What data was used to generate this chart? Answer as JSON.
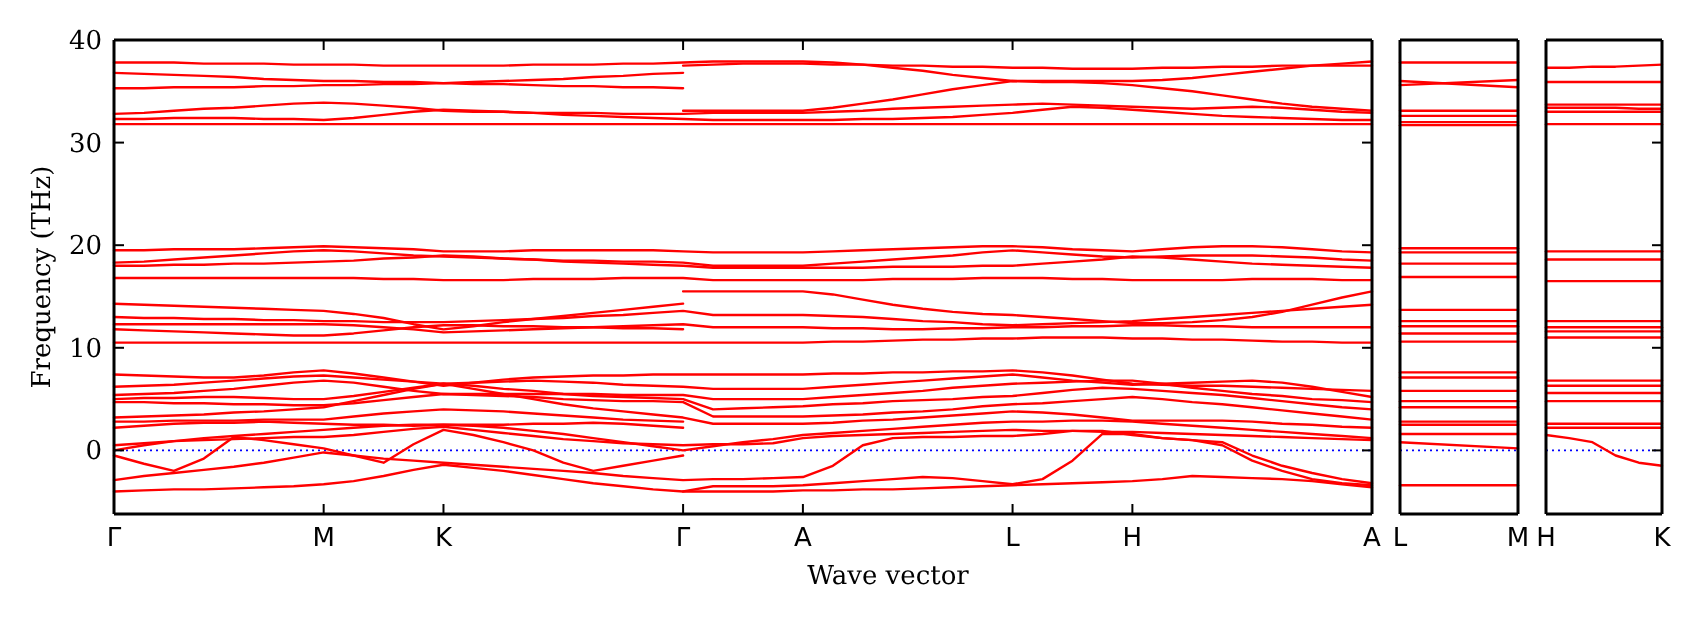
{
  "chart_data": [
    {
      "type": "line",
      "ylabel": "Frequency (THz)",
      "xlabel": "Wave vector",
      "ylim": [
        -6.2,
        40
      ],
      "categories": [
        "Γ",
        null,
        null,
        null,
        null,
        null,
        null,
        "M",
        null,
        null,
        null,
        "K",
        null,
        null,
        null,
        null,
        null,
        null,
        null,
        "Γ",
        null,
        null,
        null,
        "A",
        null,
        null,
        null,
        null,
        null,
        null,
        "L",
        null,
        null,
        null,
        "H",
        null,
        null,
        null,
        null,
        null,
        null,
        null,
        "A"
      ],
      "yticks": [
        0,
        10,
        20,
        30,
        40
      ],
      "ref_lines": [
        {
          "axis": "y",
          "value": 0,
          "color": "#0000ff",
          "line_style": "dotted"
        }
      ],
      "series": [
        {
          "color": "#ff0000",
          "values": [
            37.8,
            37.8,
            37.8,
            37.7,
            37.7,
            37.7,
            37.6,
            37.6,
            37.6,
            37.5,
            37.5,
            37.5,
            37.5,
            37.5,
            37.6,
            37.6,
            37.6,
            37.7,
            37.7,
            37.8,
            37.9,
            37.9,
            37.9,
            37.9,
            37.8,
            37.6,
            37.3,
            37.0,
            36.6,
            36.3,
            36.0,
            36.0,
            36.0,
            36.0,
            36.0,
            36.1,
            36.3,
            36.6,
            36.9,
            37.2,
            37.5,
            37.7,
            37.9
          ]
        },
        {
          "color": "#ff0000",
          "values": [
            null,
            null,
            null,
            null,
            null,
            null,
            null,
            null,
            null,
            null,
            null,
            null,
            null,
            null,
            null,
            null,
            null,
            null,
            null,
            37.5,
            37.6,
            37.7,
            37.7,
            37.7,
            37.6,
            37.6,
            37.5,
            37.5,
            37.4,
            37.4,
            37.3,
            37.3,
            37.2,
            37.2,
            37.2,
            37.3,
            37.3,
            37.4,
            37.4,
            37.5,
            37.5,
            37.5,
            37.5
          ]
        },
        {
          "color": "#ff0000",
          "values": [
            36.8,
            36.7,
            36.6,
            36.5,
            36.4,
            36.2,
            36.1,
            36.0,
            36.0,
            35.9,
            35.9,
            35.8,
            35.9,
            36.0,
            36.1,
            36.2,
            36.4,
            36.5,
            36.7,
            36.8,
            null,
            null,
            null,
            null,
            null,
            null,
            null,
            null,
            null,
            null,
            null,
            null,
            null,
            null,
            null,
            null,
            null,
            null,
            null,
            null,
            null,
            null,
            null
          ]
        },
        {
          "color": "#ff0000",
          "values": [
            35.3,
            35.3,
            35.4,
            35.4,
            35.4,
            35.5,
            35.5,
            35.6,
            35.6,
            35.7,
            35.7,
            35.8,
            35.7,
            35.7,
            35.6,
            35.5,
            35.5,
            35.4,
            35.4,
            35.3,
            null,
            null,
            null,
            null,
            null,
            null,
            null,
            null,
            null,
            null,
            null,
            null,
            null,
            null,
            null,
            null,
            null,
            null,
            null,
            null,
            null,
            null,
            null
          ]
        },
        {
          "color": "#ff0000",
          "values": [
            null,
            null,
            null,
            null,
            null,
            null,
            null,
            null,
            null,
            null,
            null,
            null,
            null,
            null,
            null,
            null,
            null,
            null,
            null,
            33.1,
            33.1,
            33.1,
            33.1,
            33.1,
            33.4,
            33.8,
            34.2,
            34.7,
            35.2,
            35.6,
            36.0,
            35.9,
            35.9,
            35.8,
            35.6,
            35.3,
            35.0,
            34.6,
            34.2,
            33.8,
            33.5,
            33.3,
            33.1
          ]
        },
        {
          "color": "#ff0000",
          "values": [
            32.8,
            32.9,
            33.1,
            33.3,
            33.4,
            33.6,
            33.8,
            33.9,
            33.8,
            33.6,
            33.4,
            33.1,
            33.0,
            33.0,
            32.9,
            32.9,
            32.9,
            32.8,
            32.8,
            32.8,
            32.9,
            32.9,
            32.9,
            32.9,
            33.0,
            33.1,
            33.3,
            33.4,
            33.5,
            33.6,
            33.7,
            33.8,
            33.7,
            33.6,
            33.5,
            33.4,
            33.3,
            33.4,
            33.5,
            33.4,
            33.2,
            33.0,
            32.9
          ]
        },
        {
          "color": "#ff0000",
          "values": [
            32.3,
            32.3,
            32.4,
            32.4,
            32.4,
            32.3,
            32.3,
            32.2,
            32.4,
            32.7,
            33.0,
            33.2,
            33.1,
            33.0,
            32.9,
            32.7,
            32.6,
            32.5,
            32.4,
            32.3,
            32.2,
            32.2,
            32.2,
            32.2,
            32.2,
            32.3,
            32.3,
            32.4,
            32.5,
            32.7,
            32.9,
            33.2,
            33.5,
            33.4,
            33.2,
            33.0,
            32.8,
            32.6,
            32.5,
            32.4,
            32.3,
            32.2,
            32.2
          ]
        },
        {
          "color": "#ff0000",
          "values": [
            31.8,
            31.8,
            31.8,
            31.8,
            31.8,
            31.8,
            31.8,
            31.8,
            31.8,
            31.8,
            31.8,
            31.8,
            31.8,
            31.8,
            31.8,
            31.8,
            31.8,
            31.8,
            31.8,
            31.8,
            31.8,
            31.8,
            31.8,
            31.8,
            31.8,
            31.8,
            31.8,
            31.8,
            31.8,
            31.8,
            31.8,
            31.8,
            31.8,
            31.8,
            31.8,
            31.8,
            31.8,
            31.8,
            31.8,
            31.8,
            31.8,
            31.8,
            31.8
          ]
        },
        {
          "color": "#ff0000",
          "values": [
            19.5,
            19.5,
            19.6,
            19.6,
            19.6,
            19.7,
            19.8,
            19.9,
            19.8,
            19.7,
            19.6,
            19.4,
            19.4,
            19.4,
            19.5,
            19.5,
            19.5,
            19.5,
            19.5,
            19.4,
            19.3,
            19.3,
            19.3,
            19.3,
            19.4,
            19.5,
            19.6,
            19.7,
            19.8,
            19.9,
            19.9,
            19.8,
            19.6,
            19.5,
            19.4,
            19.6,
            19.8,
            19.9,
            19.9,
            19.8,
            19.6,
            19.4,
            19.3
          ]
        },
        {
          "color": "#ff0000",
          "values": [
            18.3,
            18.4,
            18.6,
            18.8,
            19.0,
            19.2,
            19.4,
            19.5,
            19.4,
            19.2,
            19.0,
            18.9,
            18.8,
            18.7,
            18.6,
            18.5,
            18.5,
            18.4,
            18.4,
            18.3,
            18.0,
            18.0,
            18.0,
            18.0,
            18.2,
            18.4,
            18.6,
            18.8,
            19.0,
            19.3,
            19.5,
            19.3,
            19.1,
            18.9,
            18.8,
            18.9,
            19.0,
            19.0,
            19.0,
            18.9,
            18.8,
            18.6,
            18.5
          ]
        },
        {
          "color": "#ff0000",
          "values": [
            18.0,
            18.0,
            18.1,
            18.1,
            18.2,
            18.2,
            18.3,
            18.4,
            18.5,
            18.7,
            18.8,
            19.0,
            18.9,
            18.7,
            18.6,
            18.4,
            18.3,
            18.2,
            18.1,
            18.0,
            17.8,
            17.8,
            17.8,
            17.8,
            17.8,
            17.8,
            17.9,
            17.9,
            17.9,
            18.0,
            18.0,
            18.2,
            18.4,
            18.6,
            18.9,
            18.8,
            18.6,
            18.4,
            18.2,
            18.1,
            18.0,
            17.9,
            17.8
          ]
        },
        {
          "color": "#ff0000",
          "values": [
            16.8,
            16.8,
            16.8,
            16.8,
            16.8,
            16.8,
            16.8,
            16.8,
            16.8,
            16.7,
            16.7,
            16.6,
            16.6,
            16.6,
            16.7,
            16.7,
            16.7,
            16.8,
            16.8,
            16.8,
            16.6,
            16.6,
            16.6,
            16.6,
            16.6,
            16.6,
            16.7,
            16.7,
            16.7,
            16.8,
            16.8,
            16.8,
            16.7,
            16.7,
            16.6,
            16.6,
            16.6,
            16.6,
            16.7,
            16.7,
            16.7,
            16.6,
            16.6
          ]
        },
        {
          "color": "#ff0000",
          "values": [
            14.3,
            14.2,
            14.1,
            14.0,
            13.9,
            13.8,
            13.7,
            13.6,
            13.3,
            12.9,
            12.3,
            11.8,
            12.1,
            12.5,
            12.8,
            13.1,
            13.4,
            13.7,
            14.0,
            14.3,
            null,
            null,
            null,
            null,
            null,
            null,
            null,
            null,
            null,
            null,
            null,
            null,
            null,
            null,
            null,
            null,
            null,
            null,
            null,
            null,
            null,
            null,
            null
          ]
        },
        {
          "color": "#ff0000",
          "values": [
            null,
            null,
            null,
            null,
            null,
            null,
            null,
            null,
            null,
            null,
            null,
            null,
            null,
            null,
            null,
            null,
            null,
            null,
            null,
            15.5,
            15.5,
            15.5,
            15.5,
            15.5,
            15.2,
            14.7,
            14.2,
            13.8,
            13.5,
            13.3,
            13.2,
            13.0,
            12.8,
            12.6,
            12.4,
            12.4,
            12.5,
            12.7,
            13.0,
            13.5,
            14.2,
            14.9,
            15.5
          ]
        },
        {
          "color": "#ff0000",
          "values": [
            13.0,
            12.9,
            12.9,
            12.8,
            12.8,
            12.7,
            12.7,
            12.6,
            12.6,
            12.5,
            12.5,
            12.5,
            12.6,
            12.7,
            12.8,
            12.9,
            13.1,
            13.2,
            13.4,
            13.6,
            13.2,
            13.2,
            13.2,
            13.2,
            13.1,
            13.0,
            12.8,
            12.6,
            12.5,
            12.3,
            12.2,
            12.3,
            12.4,
            12.5,
            12.6,
            12.8,
            13.0,
            13.2,
            13.4,
            13.6,
            13.8,
            14.0,
            14.2
          ]
        },
        {
          "color": "#ff0000",
          "values": [
            12.3,
            12.3,
            12.3,
            12.3,
            12.3,
            12.3,
            12.3,
            12.3,
            12.2,
            12.0,
            11.8,
            11.5,
            11.6,
            11.7,
            11.8,
            11.9,
            12.0,
            12.1,
            12.2,
            12.3,
            12.0,
            12.0,
            12.0,
            12.0,
            11.9,
            11.9,
            11.8,
            11.8,
            11.9,
            11.9,
            12.0,
            12.0,
            12.1,
            12.1,
            12.2,
            12.2,
            12.1,
            12.1,
            12.0,
            12.0,
            12.0,
            12.0,
            12.0
          ]
        },
        {
          "color": "#ff0000",
          "values": [
            11.8,
            11.7,
            11.6,
            11.5,
            11.4,
            11.3,
            11.2,
            11.2,
            11.4,
            11.7,
            12.0,
            12.2,
            12.2,
            12.1,
            12.1,
            12.0,
            12.0,
            11.9,
            11.9,
            11.8,
            null,
            null,
            null,
            null,
            null,
            null,
            null,
            null,
            null,
            null,
            null,
            null,
            null,
            null,
            null,
            null,
            null,
            null,
            null,
            null,
            null,
            null,
            null
          ]
        },
        {
          "color": "#ff0000",
          "values": [
            10.5,
            10.5,
            10.5,
            10.5,
            10.5,
            10.5,
            10.5,
            10.5,
            10.5,
            10.5,
            10.5,
            10.5,
            10.5,
            10.5,
            10.5,
            10.5,
            10.5,
            10.5,
            10.5,
            10.5,
            10.5,
            10.5,
            10.5,
            10.5,
            10.6,
            10.6,
            10.7,
            10.8,
            10.8,
            10.9,
            10.9,
            11.0,
            11.0,
            11.0,
            10.9,
            10.9,
            10.8,
            10.8,
            10.7,
            10.6,
            10.6,
            10.5,
            10.5
          ]
        },
        {
          "color": "#ff0000",
          "values": [
            7.4,
            7.3,
            7.2,
            7.1,
            7.1,
            7.3,
            7.6,
            7.8,
            7.5,
            7.1,
            6.7,
            6.3,
            6.6,
            6.9,
            7.1,
            7.2,
            7.3,
            7.3,
            7.4,
            7.4,
            7.4,
            7.4,
            7.4,
            7.4,
            7.5,
            7.5,
            7.6,
            7.6,
            7.7,
            7.7,
            7.8,
            7.6,
            7.3,
            6.9,
            6.5,
            6.4,
            6.3,
            6.3,
            6.2,
            6.1,
            6.0,
            5.9,
            5.8
          ]
        },
        {
          "color": "#ff0000",
          "values": [
            6.2,
            6.3,
            6.4,
            6.6,
            6.8,
            7.0,
            7.2,
            7.3,
            7.1,
            6.9,
            6.7,
            6.5,
            6.6,
            6.7,
            6.8,
            6.7,
            6.6,
            6.4,
            6.3,
            6.2,
            6.0,
            6.0,
            6.0,
            6.0,
            6.2,
            6.4,
            6.6,
            6.8,
            7.0,
            7.2,
            7.4,
            7.1,
            6.8,
            6.6,
            6.4,
            6.5,
            6.6,
            6.7,
            6.8,
            6.6,
            6.2,
            5.7,
            5.2
          ]
        },
        {
          "color": "#ff0000",
          "values": [
            5.4,
            5.5,
            5.6,
            5.8,
            6.0,
            6.3,
            6.6,
            6.8,
            6.6,
            6.2,
            5.8,
            5.5,
            5.5,
            5.5,
            5.5,
            5.5,
            5.5,
            5.4,
            5.4,
            5.4,
            5.0,
            5.0,
            5.0,
            5.0,
            5.2,
            5.4,
            5.6,
            5.8,
            6.1,
            6.3,
            6.5,
            6.6,
            6.7,
            6.8,
            6.8,
            6.5,
            6.1,
            5.8,
            5.5,
            5.3,
            5.0,
            4.9,
            4.7
          ]
        },
        {
          "color": "#ff0000",
          "values": [
            5.0,
            5.1,
            5.1,
            5.2,
            5.2,
            5.1,
            5.0,
            5.0,
            5.3,
            5.7,
            6.1,
            6.5,
            6.3,
            6.0,
            5.8,
            5.5,
            5.3,
            5.2,
            5.1,
            5.0,
            4.0,
            4.1,
            4.2,
            4.3,
            4.5,
            4.6,
            4.8,
            4.9,
            5.0,
            5.2,
            5.3,
            5.6,
            5.9,
            6.1,
            6.0,
            5.8,
            5.6,
            5.4,
            5.1,
            4.8,
            4.5,
            4.2,
            4.0
          ]
        },
        {
          "color": "#ff0000",
          "values": [
            4.7,
            4.7,
            4.6,
            4.6,
            4.5,
            4.5,
            4.4,
            4.4,
            4.6,
            4.9,
            5.2,
            5.5,
            5.4,
            5.3,
            5.2,
            5.0,
            4.9,
            4.8,
            4.8,
            4.7,
            3.3,
            3.3,
            3.3,
            3.3,
            3.4,
            3.5,
            3.7,
            3.8,
            4.0,
            4.3,
            4.5,
            4.6,
            4.8,
            5.0,
            5.2,
            5.0,
            4.7,
            4.5,
            4.2,
            3.9,
            3.6,
            3.3,
            3.0
          ]
        },
        {
          "color": "#ff0000",
          "values": [
            3.2,
            3.3,
            3.4,
            3.5,
            3.7,
            3.8,
            4.0,
            4.2,
            4.8,
            5.4,
            6.0,
            6.5,
            6.0,
            5.5,
            5.0,
            4.5,
            4.1,
            3.8,
            3.5,
            3.2,
            2.6,
            2.6,
            2.6,
            2.6,
            2.7,
            2.9,
            3.0,
            3.2,
            3.4,
            3.6,
            3.8,
            3.7,
            3.5,
            3.2,
            2.9,
            2.9,
            2.9,
            2.9,
            2.8,
            2.6,
            2.5,
            2.3,
            2.2
          ]
        },
        {
          "color": "#ff0000",
          "values": [
            2.8,
            2.8,
            2.9,
            2.9,
            2.9,
            3.0,
            3.0,
            3.0,
            3.3,
            3.6,
            3.8,
            4.0,
            3.9,
            3.8,
            3.6,
            3.4,
            3.2,
            3.0,
            2.9,
            2.8,
            null,
            null,
            null,
            null,
            null,
            null,
            null,
            null,
            null,
            null,
            null,
            null,
            null,
            null,
            null,
            null,
            null,
            null,
            null,
            null,
            null,
            null,
            null
          ]
        },
        {
          "color": "#ff0000",
          "values": [
            2.2,
            2.4,
            2.6,
            2.7,
            2.7,
            2.8,
            2.7,
            2.6,
            2.5,
            2.5,
            2.4,
            2.5,
            2.5,
            2.5,
            2.6,
            2.6,
            2.7,
            2.6,
            2.4,
            2.2,
            null,
            null,
            null,
            null,
            null,
            null,
            null,
            null,
            null,
            null,
            null,
            null,
            null,
            null,
            null,
            null,
            null,
            null,
            null,
            null,
            null,
            null,
            null
          ]
        },
        {
          "color": "#ff0000",
          "values": [
            0,
            0.5,
            0.9,
            1.2,
            1.4,
            1.6,
            1.8,
            2.0,
            2.2,
            2.4,
            2.5,
            2.5,
            2.4,
            2.2,
            1.9,
            1.6,
            1.2,
            0.8,
            0.4,
            0,
            0.4,
            0.8,
            1.1,
            1.5,
            1.7,
            1.9,
            2.1,
            2.3,
            2.5,
            2.7,
            2.8,
            2.8,
            2.9,
            2.9,
            2.8,
            2.6,
            2.4,
            2.2,
            2.0,
            1.8,
            1.6,
            1.4,
            1.2
          ]
        },
        {
          "color": "#ff0000",
          "values": [
            0.5,
            0.7,
            0.9,
            1.0,
            1.1,
            1.2,
            1.3,
            1.3,
            1.5,
            1.8,
            2.1,
            2.3,
            2.0,
            1.7,
            1.4,
            1.1,
            0.9,
            0.7,
            0.6,
            0.5,
            0.6,
            0.6,
            0.7,
            1.2,
            1.4,
            1.5,
            1.6,
            1.7,
            1.8,
            1.9,
            2.0,
            1.9,
            1.9,
            1.8,
            1.8,
            1.7,
            1.6,
            1.5,
            1.4,
            1.3,
            1.2,
            1.1,
            1.0
          ]
        },
        {
          "color": "#ff0000",
          "values": [
            -0.5,
            -1.3,
            -2.0,
            -0.8,
            1.3,
            1.0,
            0.6,
            0.2,
            -0.5,
            -1.2,
            0.6,
            2.0,
            1.5,
            0.8,
            0,
            -1.2,
            -2.0,
            -1.5,
            -1.0,
            -0.5,
            null,
            null,
            null,
            null,
            null,
            null,
            null,
            null,
            null,
            null,
            null,
            null,
            null,
            null,
            null,
            null,
            null,
            null,
            null,
            null,
            null,
            null,
            null
          ]
        },
        {
          "color": "#ff0000",
          "values": [
            -2.9,
            -2.5,
            -2.2,
            -1.9,
            -1.6,
            -1.2,
            -0.7,
            -0.2,
            -0.5,
            -0.8,
            -1.0,
            -1.2,
            -1.4,
            -1.6,
            -1.8,
            -2.0,
            -2.2,
            -2.5,
            -2.7,
            -2.9,
            -2.8,
            -2.8,
            -2.7,
            -2.6,
            -1.5,
            0.5,
            1.2,
            1.3,
            1.3,
            1.4,
            1.4,
            1.6,
            1.9,
            1.9,
            1.5,
            1.2,
            1.0,
            0.8,
            -0.5,
            -1.5,
            -2.2,
            -2.8,
            -3.2
          ]
        },
        {
          "color": "#ff0000",
          "values": [
            -4.0,
            -3.9,
            -3.8,
            -3.8,
            -3.7,
            -3.6,
            -3.5,
            -3.3,
            -3.0,
            -2.5,
            -1.9,
            -1.4,
            -1.7,
            -2.0,
            -2.4,
            -2.8,
            -3.2,
            -3.5,
            -3.8,
            -4.0,
            -3.5,
            -3.5,
            -3.5,
            -3.4,
            -3.2,
            -3.0,
            -2.8,
            -2.6,
            -2.7,
            -3.0,
            -3.3,
            -2.8,
            -1.0,
            1.6,
            1.6,
            1.2,
            1.0,
            0.5,
            -1.0,
            -2.0,
            -2.8,
            -3.2,
            -3.4
          ]
        },
        {
          "color": "#ff0000",
          "values": [
            null,
            null,
            null,
            null,
            null,
            null,
            null,
            null,
            null,
            null,
            null,
            null,
            null,
            null,
            null,
            null,
            null,
            null,
            null,
            -4.0,
            -4.0,
            -4.0,
            -4.0,
            -3.9,
            -3.9,
            -3.8,
            -3.8,
            -3.7,
            -3.6,
            -3.5,
            -3.4,
            -3.3,
            -3.2,
            -3.1,
            -3.0,
            -2.8,
            -2.5,
            -2.6,
            -2.7,
            -2.8,
            -3.0,
            -3.3,
            -3.6
          ]
        }
      ]
    },
    {
      "type": "line",
      "ylim": [
        -6.2,
        40
      ],
      "tick_labels": "x",
      "categories": [
        "L",
        "M"
      ],
      "ref_lines": [
        {
          "axis": "y",
          "value": 0,
          "color": "#0000ff",
          "line_style": "dotted"
        }
      ],
      "series": [
        {
          "color": "#ff0000",
          "values": [
            37.8,
            37.8
          ]
        },
        {
          "color": "#ff0000",
          "values": [
            35.6,
            36.1
          ]
        },
        {
          "color": "#ff0000",
          "values": [
            36.0,
            35.4
          ]
        },
        {
          "color": "#ff0000",
          "values": [
            33.1,
            33.1
          ]
        },
        {
          "color": "#ff0000",
          "values": [
            32.6,
            32.6
          ]
        },
        {
          "color": "#ff0000",
          "values": [
            32.0,
            32.0
          ]
        },
        {
          "color": "#ff0000",
          "values": [
            31.7,
            31.7
          ]
        },
        {
          "color": "#ff0000",
          "values": [
            19.7,
            19.7
          ]
        },
        {
          "color": "#ff0000",
          "values": [
            19.3,
            19.3
          ]
        },
        {
          "color": "#ff0000",
          "values": [
            18.2,
            18.2
          ]
        },
        {
          "color": "#ff0000",
          "values": [
            16.9,
            16.9
          ]
        },
        {
          "color": "#ff0000",
          "values": [
            13.7,
            13.7
          ]
        },
        {
          "color": "#ff0000",
          "values": [
            12.6,
            12.6
          ]
        },
        {
          "color": "#ff0000",
          "values": [
            12.1,
            12.1
          ]
        },
        {
          "color": "#ff0000",
          "values": [
            11.4,
            11.4
          ]
        },
        {
          "color": "#ff0000",
          "values": [
            10.6,
            10.6
          ]
        },
        {
          "color": "#ff0000",
          "values": [
            7.6,
            7.6
          ]
        },
        {
          "color": "#ff0000",
          "values": [
            7.1,
            7.1
          ]
        },
        {
          "color": "#ff0000",
          "values": [
            5.8,
            5.8
          ]
        },
        {
          "color": "#ff0000",
          "values": [
            4.8,
            4.8
          ]
        },
        {
          "color": "#ff0000",
          "values": [
            4.2,
            4.2
          ]
        },
        {
          "color": "#ff0000",
          "values": [
            2.8,
            2.8
          ]
        },
        {
          "color": "#ff0000",
          "values": [
            2.5,
            2.5
          ]
        },
        {
          "color": "#ff0000",
          "values": [
            1.6,
            1.6
          ]
        },
        {
          "color": "#ff0000",
          "values": [
            0.8,
            0.2
          ]
        },
        {
          "color": "#ff0000",
          "values": [
            -3.4,
            -3.4
          ]
        }
      ]
    },
    {
      "type": "line",
      "ylim": [
        -6.2,
        40
      ],
      "tick_labels": "x",
      "categories": [
        "H",
        null,
        null,
        null,
        null,
        "K"
      ],
      "yticks": [
        {
          "value": 0,
          "label": null
        },
        {
          "value": 10,
          "label": null
        },
        {
          "value": 20,
          "label": null
        },
        {
          "value": 30,
          "label": null
        },
        {
          "value": 40,
          "label": null
        }
      ],
      "ref_lines": [
        {
          "axis": "y",
          "value": 0,
          "color": "#0000ff",
          "line_style": "dotted"
        }
      ],
      "series": [
        {
          "color": "#ff0000",
          "values": [
            37.3,
            37.3,
            37.4,
            37.4,
            37.5,
            37.6
          ]
        },
        {
          "color": "#ff0000",
          "values": [
            35.9,
            35.9,
            35.9,
            35.9,
            35.9,
            35.9
          ]
        },
        {
          "color": "#ff0000",
          "values": [
            33.7,
            33.7,
            33.7,
            33.7,
            33.7,
            33.7
          ]
        },
        {
          "color": "#ff0000",
          "values": [
            33.4,
            33.4,
            33.4,
            33.4,
            33.3,
            33.3
          ]
        },
        {
          "color": "#ff0000",
          "values": [
            33.0,
            33.0,
            33.0,
            33.0,
            33.0,
            33.0
          ]
        },
        {
          "color": "#ff0000",
          "values": [
            31.8,
            31.8,
            31.8,
            31.8,
            31.8,
            31.8
          ]
        },
        {
          "color": "#ff0000",
          "values": [
            19.4,
            19.4,
            19.4,
            19.4,
            19.4,
            19.4
          ]
        },
        {
          "color": "#ff0000",
          "values": [
            18.6,
            18.6,
            18.6,
            18.6,
            18.6,
            18.6
          ]
        },
        {
          "color": "#ff0000",
          "values": [
            16.5,
            16.5,
            16.5,
            16.5,
            16.5,
            16.5
          ]
        },
        {
          "color": "#ff0000",
          "values": [
            12.6,
            12.6,
            12.6,
            12.6,
            12.6,
            12.6
          ]
        },
        {
          "color": "#ff0000",
          "values": [
            12.0,
            12.0,
            12.0,
            12.0,
            12.0,
            12.0
          ]
        },
        {
          "color": "#ff0000",
          "values": [
            11.6,
            11.6,
            11.6,
            11.6,
            11.6,
            11.6
          ]
        },
        {
          "color": "#ff0000",
          "values": [
            11.0,
            11.0,
            11.0,
            11.0,
            11.0,
            11.0
          ]
        },
        {
          "color": "#ff0000",
          "values": [
            6.8,
            6.8,
            6.8,
            6.8,
            6.8,
            6.8
          ]
        },
        {
          "color": "#ff0000",
          "values": [
            6.3,
            6.3,
            6.3,
            6.3,
            6.3,
            6.3
          ]
        },
        {
          "color": "#ff0000",
          "values": [
            5.6,
            5.6,
            5.6,
            5.6,
            5.6,
            5.6
          ]
        },
        {
          "color": "#ff0000",
          "values": [
            4.8,
            4.8,
            4.8,
            4.8,
            4.8,
            4.8
          ]
        },
        {
          "color": "#ff0000",
          "values": [
            2.6,
            2.6,
            2.6,
            2.6,
            2.6,
            2.6
          ]
        },
        {
          "color": "#ff0000",
          "values": [
            2.2,
            2.2,
            2.2,
            2.2,
            2.2,
            2.2
          ]
        },
        {
          "color": "#ff0000",
          "values": [
            1.5,
            1.2,
            0.8,
            -0.5,
            -1.2,
            -1.5
          ]
        }
      ]
    }
  ]
}
